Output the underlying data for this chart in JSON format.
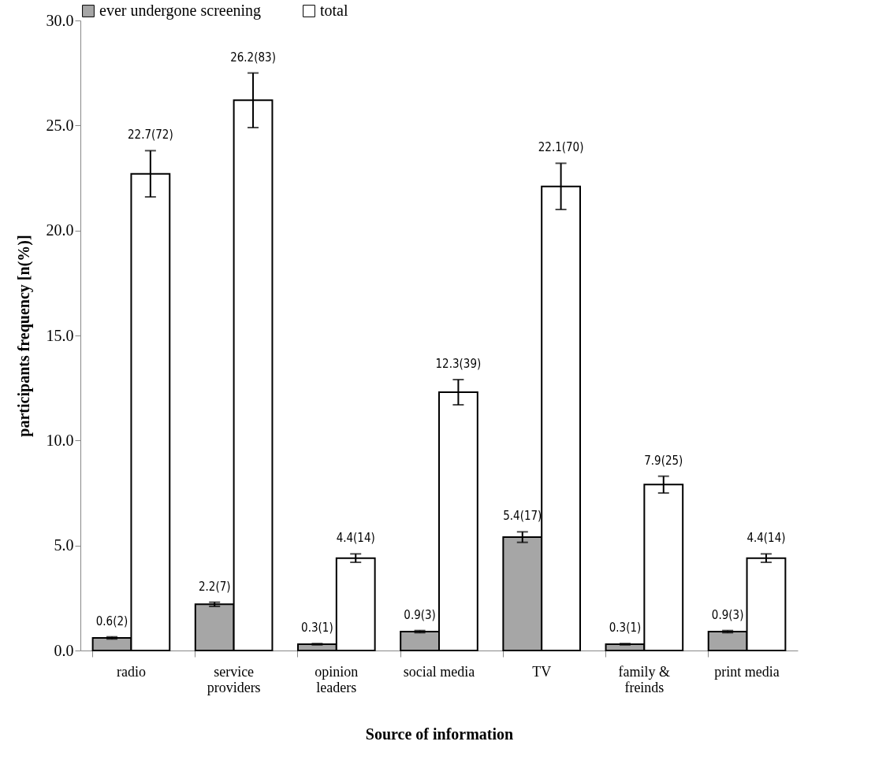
{
  "chart_data": {
    "type": "bar",
    "xlabel": "Source of information",
    "ylabel": "participants frequency [n(%)]",
    "categories": [
      "radio",
      "service providers",
      "opinion leaders",
      "social media",
      "TV",
      "family & freinds",
      "print media"
    ],
    "series": [
      {
        "name": "ever undergone screening",
        "color": "#a6a6a6",
        "values": [
          0.6,
          2.2,
          0.3,
          0.9,
          5.4,
          0.3,
          0.9
        ],
        "errors": [
          0.05,
          0.1,
          0.03,
          0.05,
          0.25,
          0.03,
          0.05
        ],
        "value_labels": [
          "0.6(2)",
          "2.2(7)",
          "0.3(1)",
          "0.9(3)",
          "5.4(17)",
          "0.3(1)",
          "0.9(3)"
        ]
      },
      {
        "name": "total",
        "color": "#ffffff",
        "values": [
          22.7,
          26.2,
          4.4,
          12.3,
          22.1,
          7.9,
          4.4
        ],
        "errors": [
          1.1,
          1.3,
          0.2,
          0.6,
          1.1,
          0.4,
          0.2
        ],
        "value_labels": [
          "22.7(72)",
          "26.2(83)",
          "4.4(14)",
          "12.3(39)",
          "22.1(70)",
          "7.9(25)",
          "4.4(14)"
        ]
      }
    ],
    "ylim": [
      0,
      30
    ],
    "yticks": [
      {
        "value": 0,
        "label": "0.0"
      },
      {
        "value": 5,
        "label": "5.0"
      },
      {
        "value": 10,
        "label": "10.0"
      },
      {
        "value": 15,
        "label": "15.0"
      },
      {
        "value": 20,
        "label": "20.0"
      },
      {
        "value": 25,
        "label": "25.0"
      },
      {
        "value": 30,
        "label": "30.0"
      }
    ],
    "grid": false,
    "legend": "top"
  }
}
